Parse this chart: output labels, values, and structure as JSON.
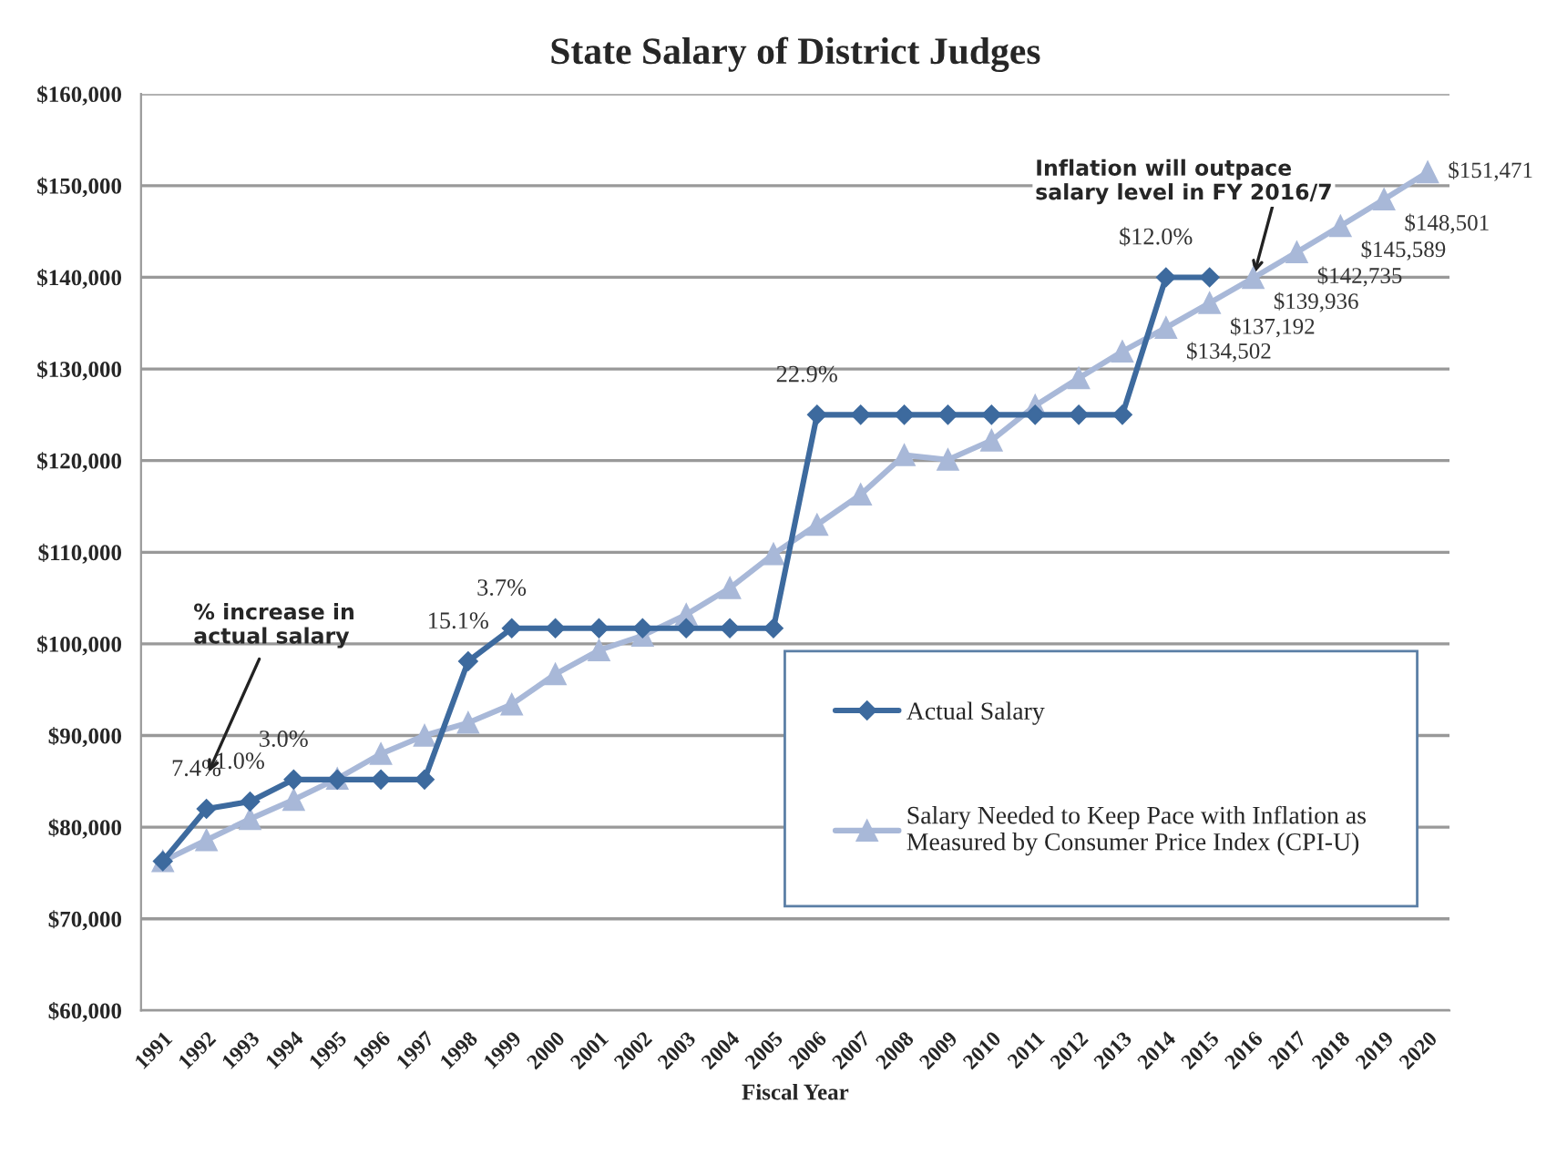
{
  "chart_data": {
    "type": "line",
    "title": "State Salary of District Judges",
    "xlabel": "Fiscal Year",
    "categories": [
      "1991",
      "1992",
      "1993",
      "1994",
      "1995",
      "1996",
      "1997",
      "1998",
      "1999",
      "2000",
      "2001",
      "2002",
      "2003",
      "2004",
      "2005",
      "2006",
      "2007",
      "2008",
      "2009",
      "2010",
      "2011",
      "2012",
      "2013",
      "2014",
      "2015",
      "2016",
      "2017",
      "2018",
      "2019",
      "2020"
    ],
    "series": [
      {
        "name": "Actual Salary",
        "color": "#3d6a9e",
        "marker": "diamond",
        "values": [
          76300,
          82000,
          82800,
          85200,
          85200,
          85200,
          85200,
          98100,
          101700,
          101700,
          101700,
          101700,
          101700,
          101700,
          101700,
          125000,
          125000,
          125000,
          125000,
          125000,
          125000,
          125000,
          125000,
          140000,
          140000,
          null,
          null,
          null,
          null,
          null
        ]
      },
      {
        "name": "Salary Needed to Keep Pace with Inflation as Measured by Consumer Price Index (CPI-U)",
        "color": "#a8b8d8",
        "marker": "triangle",
        "values": [
          76300,
          78600,
          80900,
          83000,
          85300,
          88000,
          90000,
          91400,
          93400,
          96700,
          99300,
          100900,
          103200,
          106100,
          109800,
          113000,
          116300,
          120600,
          120100,
          122200,
          126000,
          129000,
          131900,
          134502,
          137192,
          139936,
          142735,
          145589,
          148501,
          151471
        ],
        "value_labels": [
          null,
          null,
          null,
          null,
          null,
          null,
          null,
          null,
          null,
          null,
          null,
          null,
          null,
          null,
          null,
          null,
          null,
          null,
          null,
          null,
          null,
          null,
          null,
          "$134,502",
          "$137,192",
          "$139,936",
          "$142,735",
          "$145,589",
          "$148,501",
          "$151,471"
        ]
      }
    ],
    "ylim": [
      60000,
      160000
    ],
    "yticks": [
      {
        "value": 60000,
        "label": "$60,000"
      },
      {
        "value": 70000,
        "label": "$70,000"
      },
      {
        "value": 80000,
        "label": "$80,000"
      },
      {
        "value": 90000,
        "label": "$90,000"
      },
      {
        "value": 100000,
        "label": "$100,000"
      },
      {
        "value": 110000,
        "label": "$110,000"
      },
      {
        "value": 120000,
        "label": "$120,000"
      },
      {
        "value": 130000,
        "label": "$130,000"
      },
      {
        "value": 140000,
        "label": "$140,000"
      },
      {
        "value": 150000,
        "label": "$150,000"
      },
      {
        "value": 160000,
        "label": "$160,000"
      }
    ],
    "grid": "y",
    "legend": "bottom right",
    "line_style": "solid",
    "annotations": [
      {
        "text": "7.4%",
        "x": "1992",
        "y": 82000
      },
      {
        "text": "1.0%",
        "x": "1993",
        "y": 82800
      },
      {
        "text": "3.0%",
        "x": "1994",
        "y": 85200
      },
      {
        "text": "15.1%",
        "x": "1998",
        "y": 98100
      },
      {
        "text": "3.7%",
        "x": "1999",
        "y": 101700
      },
      {
        "text": "22.9%",
        "x": "2006",
        "y": 125000
      },
      {
        "text": "$12.0%",
        "x": "2014",
        "y": 140000
      },
      "% increase in\nactual salary",
      {
        "text": "Inflation will outpace\nsalary level in FY 2016/7",
        "x": "2016",
        "y": 139936
      }
    ]
  }
}
